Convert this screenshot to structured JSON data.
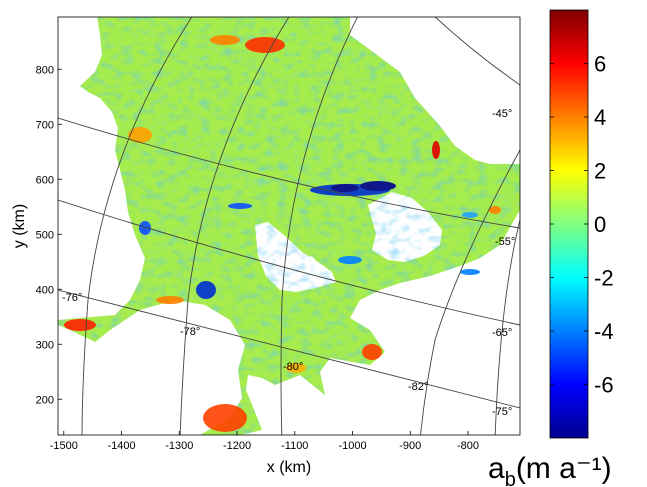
{
  "chart_data": {
    "type": "heatmap",
    "xlabel": "x (km)",
    "ylabel": "y (km)",
    "xlim": [
      -1510,
      -710
    ],
    "ylim": [
      135,
      895
    ],
    "x_ticks": [
      -1500,
      -1400,
      -1300,
      -1200,
      -1100,
      -1000,
      -900,
      -800
    ],
    "y_ticks": [
      200,
      300,
      400,
      500,
      600,
      700,
      800
    ],
    "colorbar": {
      "label": "a_b (m a⁻¹)",
      "label_main": "a",
      "label_sub": "b",
      "label_unit": "(m a⁻¹)",
      "range": [
        -8,
        8
      ],
      "ticks": [
        6,
        4,
        2,
        0,
        -2,
        -4,
        -6
      ],
      "colormap": [
        "#00008f",
        "#0000ff",
        "#0080ff",
        "#00ffff",
        "#80ff80",
        "#ffff00",
        "#ff8000",
        "#ff0000",
        "#800000"
      ]
    },
    "longitude_labels": [
      "-76°",
      "-78°",
      "-80°",
      "-82°"
    ],
    "latitude_labels": [
      "-45°",
      "-55°",
      "-65°",
      "-75°"
    ],
    "field_background_color": "#a6ec4c"
  }
}
